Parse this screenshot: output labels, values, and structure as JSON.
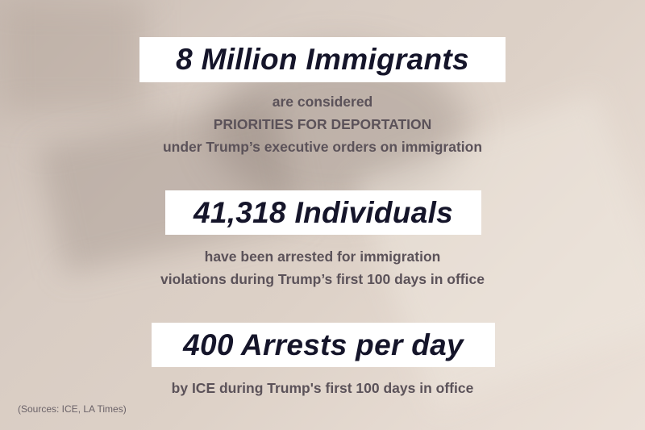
{
  "facts": [
    {
      "headline": "8 Million Immigrants",
      "lines": [
        "are considered",
        "PRIORITIES FOR DEPORTATION",
        "under Trump’s executive orders on immigration"
      ]
    },
    {
      "headline": "41,318 Individuals",
      "lines": [
        "have been arrested for immigration",
        "violations during Trump’s first 100 days in office"
      ]
    },
    {
      "headline": "400 Arrests per day",
      "lines": [
        "by ICE during Trump's first 100 days in office"
      ]
    }
  ],
  "sources": "(Sources: ICE, LA Times)"
}
